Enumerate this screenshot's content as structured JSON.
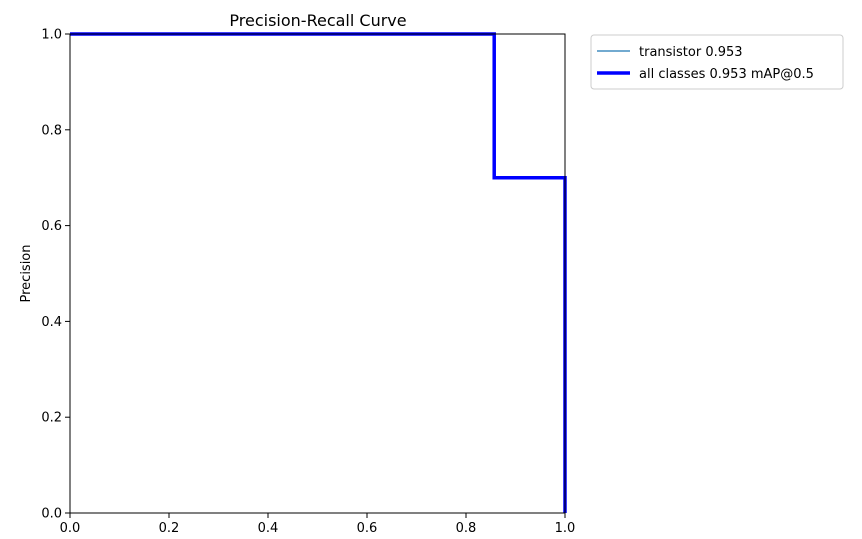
{
  "chart_data": {
    "type": "line",
    "title": "Precision-Recall Curve",
    "xlabel": "",
    "ylabel": "Precision",
    "xlim": [
      0,
      1
    ],
    "ylim": [
      0,
      1
    ],
    "xticks": [
      "0.0",
      "0.2",
      "0.4",
      "0.6",
      "0.8",
      "1.0"
    ],
    "yticks": [
      "0.0",
      "0.2",
      "0.4",
      "0.6",
      "0.8",
      "1.0"
    ],
    "grid": false,
    "legend_position": "outside-upper-right",
    "series": [
      {
        "name": "transistor 0.953",
        "color": "#1f77b4",
        "style": "thin",
        "x": [
          0,
          0.857,
          0.857,
          1.0,
          1.0
        ],
        "y": [
          1.0,
          1.0,
          0.7,
          0.7,
          0.0
        ]
      },
      {
        "name": "all classes 0.953 mAP@0.5",
        "color": "#0000ff",
        "style": "thick",
        "x": [
          0,
          0.857,
          0.857,
          1.0,
          1.0
        ],
        "y": [
          1.0,
          1.0,
          0.7,
          0.7,
          0.0
        ]
      }
    ]
  }
}
